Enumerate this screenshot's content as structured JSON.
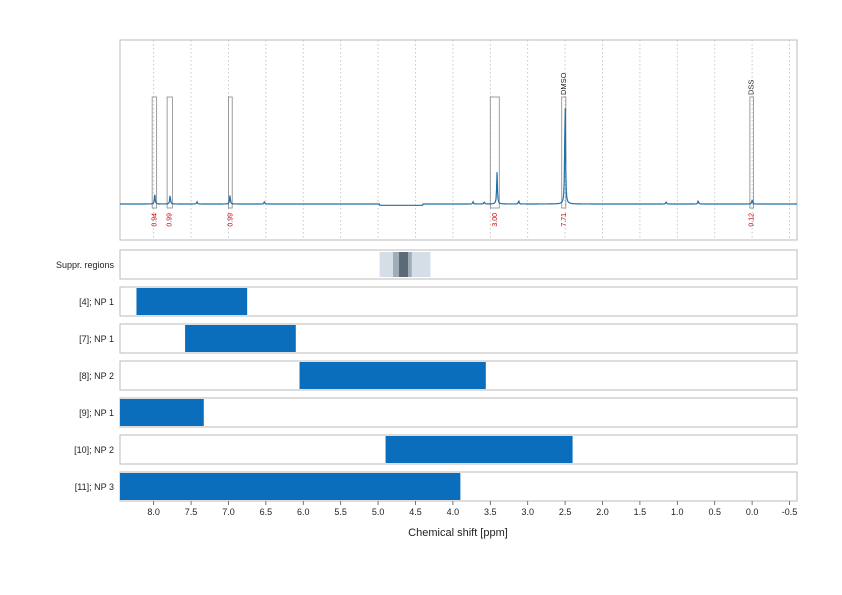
{
  "chart_data": {
    "type": "nmr-spectrum-with-range-bars",
    "xlabel": "Chemical shift [ppm]",
    "xlim": [
      8.45,
      -0.6
    ],
    "xticks": [
      8.0,
      7.5,
      7.0,
      6.5,
      6.0,
      5.5,
      5.0,
      4.5,
      4.0,
      3.5,
      3.0,
      2.5,
      2.0,
      1.5,
      1.0,
      0.5,
      0.0,
      -0.5
    ],
    "xtick_labels": [
      "8.0",
      "7.5",
      "7.0",
      "6.5",
      "6.0",
      "5.5",
      "5.0",
      "4.5",
      "4.0",
      "3.5",
      "3.0",
      "2.5",
      "2.0",
      "1.5",
      "1.0",
      "0.5",
      "0.0",
      "-0.5"
    ],
    "colors": {
      "spectrum": "#1f6fa8",
      "bars": "#0a6ebd",
      "integral_labels": "#cc0000",
      "frame": "#bbbbbb",
      "grid": "#bbbbbb"
    },
    "spectrum": {
      "peaks": [
        {
          "ppm": 7.985,
          "height": 0.09
        },
        {
          "ppm": 7.78,
          "height": 0.08
        },
        {
          "ppm": 6.98,
          "height": 0.08
        },
        {
          "ppm": 3.41,
          "height": 0.29
        },
        {
          "ppm": 2.5,
          "height": 0.98
        },
        {
          "ppm": 0.0,
          "height": 0.04
        },
        {
          "ppm": 7.42,
          "height": 0.02
        },
        {
          "ppm": 6.52,
          "height": 0.02
        },
        {
          "ppm": 3.73,
          "height": 0.02
        },
        {
          "ppm": 3.12,
          "height": 0.03
        },
        {
          "ppm": 3.58,
          "height": 0.02
        },
        {
          "ppm": 1.15,
          "height": 0.02
        },
        {
          "ppm": 0.72,
          "height": 0.03
        }
      ]
    },
    "integration_regions": [
      {
        "from": 8.02,
        "to": 7.96,
        "integral": "0.94"
      },
      {
        "from": 7.82,
        "to": 7.75,
        "integral": "0.99"
      },
      {
        "from": 7.0,
        "to": 6.95,
        "integral": "0.99"
      },
      {
        "from": 3.5,
        "to": 3.38,
        "integral": "3.00"
      },
      {
        "from": 2.545,
        "to": 2.49,
        "integral": "7.71",
        "label": "DMSO"
      },
      {
        "from": 0.03,
        "to": -0.02,
        "integral": "0.12",
        "label": "DSS"
      }
    ],
    "suppression_regions": [
      {
        "from": 4.98,
        "to": 4.3,
        "level": 1
      },
      {
        "from": 4.8,
        "to": 4.55,
        "level": 2
      },
      {
        "from": 4.72,
        "to": 4.6,
        "level": 3
      }
    ],
    "rows": [
      {
        "label": "Suppr. regions",
        "bars": []
      },
      {
        "label": "[4]; NP 1",
        "bars": [
          {
            "from": 8.23,
            "to": 6.75
          }
        ]
      },
      {
        "label": "[7]; NP 1",
        "bars": [
          {
            "from": 7.58,
            "to": 6.1
          }
        ]
      },
      {
        "label": "[8]; NP 2",
        "bars": [
          {
            "from": 6.05,
            "to": 3.56
          }
        ]
      },
      {
        "label": "[9]; NP 1",
        "bars": [
          {
            "from": 8.45,
            "to": 7.33
          }
        ]
      },
      {
        "label": "[10]; NP 2",
        "bars": [
          {
            "from": 4.9,
            "to": 2.4
          }
        ]
      },
      {
        "label": "[11]; NP 3",
        "bars": [
          {
            "from": 8.45,
            "to": 3.9
          }
        ]
      }
    ]
  }
}
